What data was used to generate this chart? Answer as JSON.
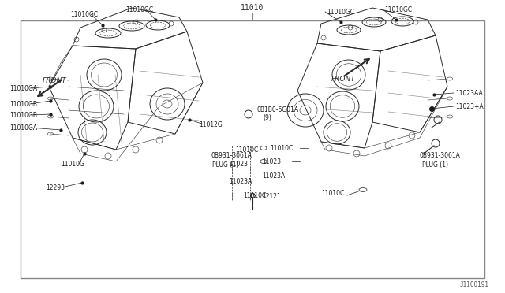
{
  "bg_color": "#ffffff",
  "line_color": "#2a2a2a",
  "title_label": "11010",
  "footer_label": "J1100191",
  "border": [
    0.04,
    0.05,
    0.96,
    0.93
  ]
}
